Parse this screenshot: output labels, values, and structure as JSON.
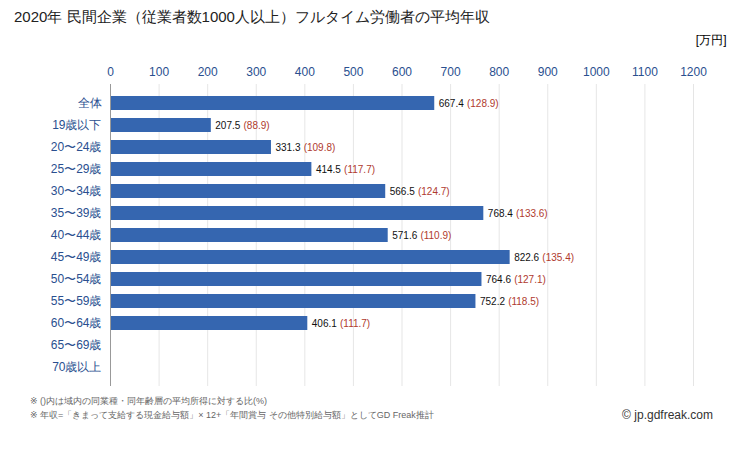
{
  "chart_data": {
    "type": "bar",
    "title": "2020年 民間企業（従業者数1000人以上）フルタイム労働者の平均年収",
    "x_label": "[万円]",
    "orientation": "horizontal",
    "categories": [
      "全体",
      "19歳以下",
      "20〜24歳",
      "25〜29歳",
      "30〜34歳",
      "35〜39歳",
      "40〜44歳",
      "45〜49歳",
      "50〜54歳",
      "55〜59歳",
      "60〜64歳",
      "65〜69歳",
      "70歳以上"
    ],
    "values": [
      667.4,
      207.5,
      331.3,
      414.5,
      566.5,
      768.4,
      571.6,
      822.6,
      764.6,
      752.2,
      406.1,
      null,
      null
    ],
    "ratios": [
      128.9,
      88.9,
      109.8,
      117.7,
      124.7,
      133.6,
      110.9,
      135.4,
      127.1,
      118.5,
      111.7,
      null,
      null
    ],
    "ratio_labels": [
      "(128.9)",
      "(88.9)",
      "(109.8)",
      "(117.7)",
      "(124.7)",
      "(133.6)",
      "(110.9)",
      "(135.4)",
      "(127.1)",
      "(118.5)",
      "(111.7)",
      null,
      null
    ],
    "color": "#3566b0",
    "xlim": [
      0,
      1200
    ],
    "xticks": [
      0,
      100,
      200,
      300,
      400,
      500,
      600,
      700,
      800,
      900,
      1000,
      1100,
      1200
    ],
    "grid": true,
    "data_labels": true,
    "notes": [
      "※ ()内は域内の同業種・同年齢層の平均所得に対する比(%)",
      "※ 年収=「きまって支給する現金給与額」× 12+「年間賞与 その他特別給与額」としてGD Freak推計"
    ],
    "source": "© jp.gdfreak.com"
  }
}
